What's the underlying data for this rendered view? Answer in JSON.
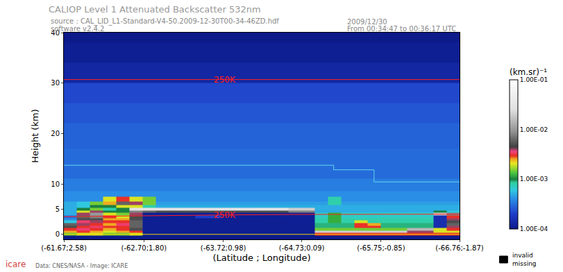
{
  "chart_data": {
    "type": "heatmap",
    "title": "CALIOP Level 1 Attenuated Backscatter 532nm",
    "annotations": [
      "source : CAL_LID_L1-Standard-V4-50.2009-12-30T00-34-46ZD.hdf",
      "software v2.4.2",
      "2009/12/30",
      "From 00:34:47 to 00:36:17 UTC",
      "Data: CNES/NASA - Image: ICARE",
      "icare",
      "invalid\nmissing"
    ],
    "x_label": "(Latitude ; Longitude)",
    "y_label": "Height (km)",
    "xlim": [
      -61.67,
      -66.76
    ],
    "xticks": [
      {
        "value": -61.67,
        "label": "(-61.67;2.58)"
      },
      {
        "value": -62.7,
        "label": "(-62.70;1.80)"
      },
      {
        "value": -63.72,
        "label": "(-63.72;0.98)"
      },
      {
        "value": -64.73,
        "label": "(-64.73;0.09)"
      },
      {
        "value": -65.75,
        "label": "(-65.75;-0.85)"
      },
      {
        "value": -66.76,
        "label": "(-66.76;-1.87)"
      }
    ],
    "ylim": [
      -1,
      40
    ],
    "yticks": [
      0,
      5,
      10,
      20,
      30,
      40
    ],
    "colorbar_title": "(km.sr)⁻¹",
    "colorbar_range": [
      0.0001,
      0.1
    ],
    "colorbar_ticks": [
      {
        "value": 0.0001,
        "label": "1.00E-04"
      },
      {
        "value": 0.001,
        "label": "1.00E-03"
      },
      {
        "value": 0.01,
        "label": "1.00E-02"
      },
      {
        "value": 0.1,
        "label": "1.00E-01"
      }
    ],
    "x": [
      -61.75,
      -61.92,
      -62.09,
      -62.26,
      -62.43,
      -62.6,
      -62.77,
      -62.94,
      -63.11,
      -63.28,
      -63.45,
      -63.62,
      -63.79,
      -63.96,
      -64.13,
      -64.3,
      -64.47,
      -64.64,
      -64.81,
      -64.98,
      -65.15,
      -65.32,
      -65.49,
      -65.66,
      -65.83,
      -66.0,
      -66.17,
      -66.34,
      -66.51,
      -66.68
    ],
    "y": [
      -0.5,
      0,
      0.5,
      1,
      1.5,
      2,
      2.5,
      3,
      3.5,
      4,
      4.5,
      5,
      5.5,
      6,
      7,
      8,
      9,
      10,
      12,
      14,
      16,
      18,
      20,
      24,
      28,
      32,
      36,
      40
    ],
    "z": [
      [
        0.0001,
        0.0001,
        0.0001,
        0.0001,
        0.0001,
        0.0001,
        0.0001,
        0.0001,
        0.0001,
        0.0001,
        0.0001,
        0.0001,
        0.0001,
        0.0001,
        0.0001,
        0.0001,
        0.0001,
        0.0001,
        0.0001,
        0.0001,
        0.0001,
        0.0001,
        0.0001,
        0.0001,
        0.0001,
        0.0001,
        0.0001,
        0.0001,
        0.0001,
        0.0001
      ],
      [
        0.0015,
        0.002,
        0.002,
        0.0015,
        0.0015,
        0.002,
        0.00011,
        0.00011,
        0.00011,
        0.00011,
        0.00011,
        0.00011,
        0.00011,
        0.00011,
        0.00011,
        0.00011,
        0.00011,
        0.00011,
        0.00011,
        0.003,
        0.003,
        0.003,
        0.003,
        0.003,
        0.003,
        0.003,
        0.003,
        0.003,
        0.003,
        0.003
      ],
      [
        0.0025,
        0.003,
        0.0025,
        0.002,
        0.0025,
        0.003,
        0.00011,
        0.00011,
        0.00011,
        0.00011,
        0.00011,
        0.00011,
        0.00011,
        0.00011,
        0.00011,
        0.00011,
        0.00011,
        0.00011,
        0.00011,
        0.02,
        0.02,
        0.02,
        0.02,
        0.02,
        0.02,
        0.02,
        0.004,
        0.004,
        0.002,
        0.002
      ],
      [
        0.003,
        0.0035,
        0.003,
        0.0025,
        0.003,
        0.005,
        0.00011,
        0.00011,
        0.00011,
        0.00011,
        0.00011,
        0.00011,
        0.00011,
        0.00011,
        0.00011,
        0.00011,
        0.00011,
        0.00011,
        0.00011,
        0.0015,
        0.0015,
        0.0015,
        0.0015,
        0.0015,
        0.0015,
        0.0015,
        0.015,
        0.015,
        0.002,
        0.003
      ],
      [
        0.005,
        0.003,
        0.0035,
        0.003,
        0.003,
        0.006,
        0.00011,
        0.00011,
        0.00011,
        0.00011,
        0.00011,
        0.00011,
        0.00011,
        0.00011,
        0.00011,
        0.00011,
        0.00011,
        0.00011,
        0.00011,
        0.0009,
        0.0009,
        0.0009,
        0.003,
        0.003,
        0.0009,
        0.0009,
        0.0009,
        0.0009,
        0.00015,
        0.004
      ],
      [
        0.006,
        0.004,
        0.003,
        0.0025,
        0.0035,
        0.006,
        0.00011,
        0.00011,
        0.00011,
        0.00011,
        0.00011,
        0.00011,
        0.00011,
        0.00011,
        0.00011,
        0.00011,
        0.00011,
        0.00011,
        0.00011,
        0.0009,
        0.0009,
        0.0009,
        0.003,
        0.0025,
        0.0009,
        0.0009,
        0.0009,
        0.0009,
        0.00015,
        0.006
      ],
      [
        0.0006,
        0.0035,
        0.004,
        0.003,
        0.003,
        0.006,
        0.00011,
        0.00011,
        0.00011,
        0.00011,
        0.00011,
        0.00011,
        0.00011,
        0.00011,
        0.00011,
        0.00011,
        0.00011,
        0.00011,
        0.00011,
        0.0008,
        0.0012,
        0.0008,
        0.002,
        0.0008,
        0.0008,
        0.0008,
        0.0008,
        0.0008,
        0.00015,
        0.005
      ],
      [
        0.0004,
        0.005,
        0.005,
        0.0025,
        0.0025,
        0.005,
        0.00011,
        0.00011,
        0.00011,
        0.00011,
        0.00011,
        0.00011,
        0.00011,
        0.00011,
        0.00011,
        0.00011,
        0.00011,
        0.00011,
        0.00011,
        0.0008,
        0.0012,
        0.0008,
        0.0008,
        0.0008,
        0.0008,
        0.0008,
        0.0008,
        0.0008,
        0.00015,
        0.004
      ],
      [
        0.0003,
        0.006,
        0.008,
        0.003,
        0.002,
        0.005,
        0.00011,
        0.00011,
        0.00011,
        0.00011,
        0.0002,
        0.0002,
        0.00011,
        0.00011,
        0.00011,
        0.00011,
        0.00011,
        0.00011,
        0.00011,
        0.0007,
        0.0012,
        0.0007,
        0.0007,
        0.0007,
        0.0007,
        0.0007,
        0.0007,
        0.0007,
        0.00015,
        0.003
      ],
      [
        0.0005,
        0.004,
        0.01,
        0.002,
        0.0015,
        0.004,
        0.00011,
        0.00011,
        0.00011,
        0.00011,
        0.00011,
        0.00011,
        0.00011,
        0.00011,
        0.00011,
        0.00011,
        0.00011,
        0.00011,
        0.00011,
        0.0007,
        0.0012,
        0.0007,
        0.0007,
        0.0007,
        0.0007,
        0.0007,
        0.0007,
        0.0007,
        0.02,
        0.008
      ],
      [
        0.0005,
        0.002,
        0.004,
        0.001,
        0.001,
        0.008,
        0.006,
        0.005,
        0.005,
        0.005,
        0.005,
        0.005,
        0.005,
        0.005,
        0.005,
        0.005,
        0.005,
        0.008,
        0.008,
        0.0005,
        0.0005,
        0.0005,
        0.0005,
        0.0005,
        0.0005,
        0.0005,
        0.0005,
        0.0005,
        0.001,
        0.0006
      ],
      [
        0.0005,
        0.001,
        0.0015,
        0.0008,
        0.001,
        0.03,
        0.03,
        0.03,
        0.03,
        0.03,
        0.03,
        0.03,
        0.03,
        0.03,
        0.03,
        0.03,
        0.03,
        0.02,
        0.02,
        0.0005,
        0.0005,
        0.0005,
        0.0005,
        0.0005,
        0.0005,
        0.0005,
        0.0005,
        0.0005,
        0.0005,
        0.0005
      ],
      [
        0.0005,
        0.0006,
        0.001,
        0.001,
        0.002,
        0.002,
        0.0008,
        0.0005,
        0.0005,
        0.0005,
        0.0005,
        0.0005,
        0.0005,
        0.0005,
        0.0005,
        0.0005,
        0.0005,
        0.0005,
        0.0005,
        0.0005,
        0.0005,
        0.0005,
        0.0005,
        0.0005,
        0.0005,
        0.0005,
        0.0005,
        0.0005,
        0.0005,
        0.0005
      ],
      [
        0.0005,
        0.0006,
        0.0015,
        0.0025,
        0.006,
        0.004,
        0.0015,
        0.00045,
        0.00045,
        0.00045,
        0.00045,
        0.00045,
        0.00045,
        0.00045,
        0.00045,
        0.00045,
        0.00045,
        0.00045,
        0.00045,
        0.00045,
        0.0008,
        0.00045,
        0.00045,
        0.00045,
        0.00045,
        0.00045,
        0.00045,
        0.00045,
        0.00045,
        0.00045
      ],
      [
        0.0004,
        0.0004,
        0.0004,
        0.002,
        0.003,
        0.002,
        0.0015,
        0.0004,
        0.0004,
        0.0004,
        0.0004,
        0.0004,
        0.0004,
        0.0004,
        0.0004,
        0.0004,
        0.0004,
        0.0004,
        0.0004,
        0.0004,
        0.0008,
        0.0004,
        0.0004,
        0.0004,
        0.0004,
        0.0004,
        0.0004,
        0.0004,
        0.0004,
        0.0004
      ],
      [
        0.0004,
        0.0004,
        0.0004,
        0.0004,
        0.0004,
        0.0004,
        0.0004,
        0.0004,
        0.0004,
        0.0004,
        0.0004,
        0.0004,
        0.0004,
        0.0004,
        0.0004,
        0.0004,
        0.0004,
        0.0004,
        0.0004,
        0.0004,
        0.0004,
        0.0004,
        0.0004,
        0.0004,
        0.0004,
        0.0004,
        0.0004,
        0.0004,
        0.0004,
        0.0004
      ],
      [
        0.00035,
        0.00035,
        0.00035,
        0.00035,
        0.00035,
        0.00035,
        0.00035,
        0.00035,
        0.00035,
        0.00035,
        0.00035,
        0.00035,
        0.00035,
        0.00035,
        0.00035,
        0.00035,
        0.00035,
        0.00035,
        0.00035,
        0.00035,
        0.00035,
        0.00035,
        0.00035,
        0.00035,
        0.00035,
        0.00035,
        0.00035,
        0.00035,
        0.00035,
        0.00035
      ],
      [
        0.00035,
        0.00035,
        0.00035,
        0.00035,
        0.00035,
        0.00035,
        0.00035,
        0.00035,
        0.00035,
        0.00035,
        0.00035,
        0.00035,
        0.00035,
        0.00035,
        0.00035,
        0.00035,
        0.00035,
        0.00035,
        0.00035,
        0.00035,
        0.00035,
        0.00035,
        0.00035,
        0.00035,
        0.00035,
        0.00035,
        0.00035,
        0.00035,
        0.00035,
        0.00035
      ],
      [
        0.0003,
        0.0003,
        0.0003,
        0.0003,
        0.0003,
        0.0003,
        0.0003,
        0.0003,
        0.0003,
        0.0003,
        0.0003,
        0.0003,
        0.0003,
        0.0003,
        0.0003,
        0.0003,
        0.0003,
        0.0003,
        0.0003,
        0.0003,
        0.0003,
        0.0003,
        0.0003,
        0.0003,
        0.0003,
        0.0003,
        0.0003,
        0.0003,
        0.0003,
        0.0003
      ],
      [
        0.0003,
        0.0003,
        0.0003,
        0.0003,
        0.0003,
        0.0003,
        0.0003,
        0.0003,
        0.0003,
        0.0003,
        0.0003,
        0.0003,
        0.0003,
        0.0003,
        0.0003,
        0.0003,
        0.0003,
        0.0003,
        0.0003,
        0.0003,
        0.0003,
        0.0003,
        0.0003,
        0.0003,
        0.0003,
        0.0003,
        0.0003,
        0.0003,
        0.0003,
        0.0003
      ],
      [
        0.0003,
        0.0003,
        0.0003,
        0.0003,
        0.0003,
        0.0003,
        0.0003,
        0.0003,
        0.0003,
        0.0003,
        0.0003,
        0.0003,
        0.0003,
        0.0003,
        0.0003,
        0.0003,
        0.0003,
        0.0003,
        0.0003,
        0.0003,
        0.0003,
        0.0003,
        0.0003,
        0.0003,
        0.0003,
        0.0003,
        0.0003,
        0.0003,
        0.0003,
        0.0003
      ],
      [
        0.00028,
        0.00028,
        0.00028,
        0.00028,
        0.00028,
        0.00028,
        0.00028,
        0.00028,
        0.00028,
        0.00028,
        0.00028,
        0.00028,
        0.00028,
        0.00028,
        0.00028,
        0.00028,
        0.00028,
        0.00028,
        0.00028,
        0.00028,
        0.00028,
        0.00028,
        0.00028,
        0.00028,
        0.00028,
        0.00028,
        0.00028,
        0.00028,
        0.00028,
        0.00028
      ],
      [
        0.00028,
        0.00028,
        0.00028,
        0.00028,
        0.00028,
        0.00028,
        0.00028,
        0.00028,
        0.00028,
        0.00028,
        0.00028,
        0.00028,
        0.00028,
        0.00028,
        0.00028,
        0.00028,
        0.00028,
        0.00028,
        0.00028,
        0.00028,
        0.00028,
        0.00028,
        0.00028,
        0.00028,
        0.00028,
        0.00028,
        0.00028,
        0.00028,
        0.00028,
        0.00028
      ],
      [
        0.00025,
        0.00025,
        0.00025,
        0.00025,
        0.00025,
        0.00025,
        0.00025,
        0.00025,
        0.00025,
        0.00025,
        0.00025,
        0.00025,
        0.00025,
        0.00025,
        0.00025,
        0.00025,
        0.00025,
        0.00025,
        0.00025,
        0.00025,
        0.00025,
        0.00025,
        0.00025,
        0.00025,
        0.00025,
        0.00025,
        0.00025,
        0.00025,
        0.00025,
        0.00025
      ],
      [
        0.00022,
        0.00022,
        0.00022,
        0.00022,
        0.00022,
        0.00022,
        0.00022,
        0.00022,
        0.00022,
        0.00022,
        0.00022,
        0.00022,
        0.00022,
        0.00022,
        0.00022,
        0.00022,
        0.00022,
        0.00022,
        0.00022,
        0.00022,
        0.00022,
        0.00022,
        0.00022,
        0.00022,
        0.00022,
        0.00022,
        0.00022,
        0.00022,
        0.00022,
        0.00022
      ],
      [
        0.00013,
        0.00013,
        0.00013,
        0.00013,
        0.00013,
        0.00013,
        0.00013,
        0.00013,
        0.00013,
        0.00013,
        0.00013,
        0.00013,
        0.00013,
        0.00013,
        0.00013,
        0.00013,
        0.00013,
        0.00013,
        0.00013,
        0.00013,
        0.00013,
        0.00013,
        0.00013,
        0.00013,
        0.00013,
        0.00013,
        0.00013,
        0.00013,
        0.00013,
        0.00013
      ],
      [
        0.00011,
        0.00011,
        0.00011,
        0.00011,
        0.00011,
        0.00011,
        0.00011,
        0.00011,
        0.00011,
        0.00011,
        0.00011,
        0.00011,
        0.00011,
        0.00011,
        0.00011,
        0.00011,
        0.00011,
        0.00011,
        0.00011,
        0.00011,
        0.00011,
        0.00011,
        0.00011,
        0.00011,
        0.00011,
        0.00011,
        0.00011,
        0.00011,
        0.00011,
        0.00011
      ],
      [
        0.0001,
        0.0001,
        0.0001,
        0.0001,
        0.0001,
        0.0001,
        0.0001,
        0.0001,
        0.0001,
        0.0001,
        0.0001,
        0.0001,
        0.0001,
        0.0001,
        0.0001,
        0.0001,
        0.0001,
        0.0001,
        0.0001,
        0.0001,
        0.0001,
        0.0001,
        0.0001,
        0.0001,
        0.0001,
        0.0001,
        0.0001,
        0.0001,
        0.0001,
        0.0001
      ]
    ],
    "lines": [
      {
        "color": "#f0d000",
        "x": [
          -61.67,
          -66.76
        ],
        "y": [
          0,
          0
        ]
      },
      {
        "color": "#60d8f0",
        "x": [
          -61.67,
          -65.14,
          -65.14,
          -65.66,
          -65.66,
          -66.76
        ],
        "y": [
          13.7,
          13.7,
          12.8,
          12.8,
          10.4,
          10.4
        ]
      },
      {
        "label": "250K",
        "color": "#ff2020",
        "x": [
          -61.67,
          -62.7,
          -63.74,
          -64.73,
          -66.76
        ],
        "y": [
          3.5,
          3.7,
          3.85,
          3.95,
          4.0
        ]
      },
      {
        "label": "250K",
        "color": "#ff2020",
        "x": [
          -61.67,
          -63.74,
          -66.76
        ],
        "y": [
          30.7,
          30.7,
          30.7
        ]
      }
    ]
  }
}
